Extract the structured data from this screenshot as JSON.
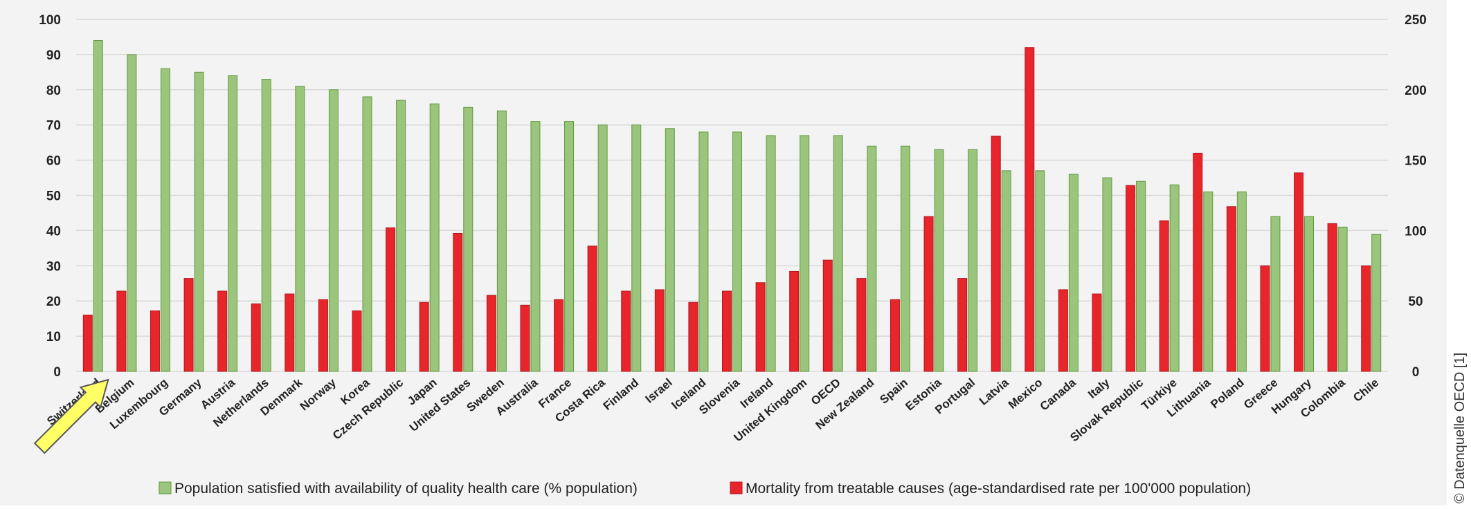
{
  "chart_data": {
    "type": "bar",
    "categories": [
      "Switzerland",
      "Belgium",
      "Luxembourg",
      "Germany",
      "Austria",
      "Netherlands",
      "Denmark",
      "Norway",
      "Korea",
      "Czech Republic",
      "Japan",
      "United States",
      "Sweden",
      "Australia",
      "France",
      "Costa Rica",
      "Finland",
      "Israel",
      "Iceland",
      "Slovenia",
      "Ireland",
      "United Kingdom",
      "OECD",
      "New Zealand",
      "Spain",
      "Estonia",
      "Portugal",
      "Latvia",
      "Mexico",
      "Canada",
      "Italy",
      "Slovak Republic",
      "Türkiye",
      "Lithuania",
      "Poland",
      "Greece",
      "Hungary",
      "Colombia",
      "Chile"
    ],
    "series": [
      {
        "name": "Population satisfied with availability of quality health care (% population)",
        "axis": "left",
        "color": "#9bc47c",
        "values": [
          94,
          90,
          86,
          85,
          84,
          83,
          81,
          80,
          78,
          77,
          76,
          75,
          74,
          71,
          71,
          70,
          70,
          69,
          68,
          68,
          67,
          67,
          67,
          64,
          64,
          63,
          63,
          57,
          57,
          56,
          55,
          54,
          53,
          51,
          51,
          44,
          44,
          41,
          39
        ]
      },
      {
        "name": "Mortality from treatable causes (age-standardised rate per 100'000 population)",
        "axis": "right",
        "color": "#e8252b",
        "values": [
          40,
          57,
          43,
          66,
          57,
          48,
          55,
          51,
          43,
          102,
          49,
          98,
          54,
          47,
          51,
          89,
          57,
          58,
          49,
          57,
          63,
          71,
          79,
          66,
          51,
          110,
          66,
          167,
          230,
          58,
          55,
          132,
          107,
          155,
          117,
          75,
          141,
          105,
          75
        ]
      }
    ],
    "y_left": {
      "ylim": [
        0,
        100
      ],
      "ticks": [
        "0",
        "10",
        "20",
        "30",
        "40",
        "50",
        "60",
        "70",
        "80",
        "90",
        "100"
      ]
    },
    "y_right": {
      "ylim": [
        0,
        250
      ],
      "ticks": [
        "0",
        "50",
        "100",
        "150",
        "200",
        "250"
      ]
    },
    "grid": true,
    "legend": "bottom",
    "highlight": {
      "category": "Switzerland",
      "marker": "arrow"
    }
  },
  "credit": "© Datenquelle OECD [1]",
  "colors": {
    "plot_bg": "#f3f3f3",
    "grid": "#d9d9d9",
    "arrow_fill": "#ffff66",
    "arrow_stroke": "#555555"
  }
}
